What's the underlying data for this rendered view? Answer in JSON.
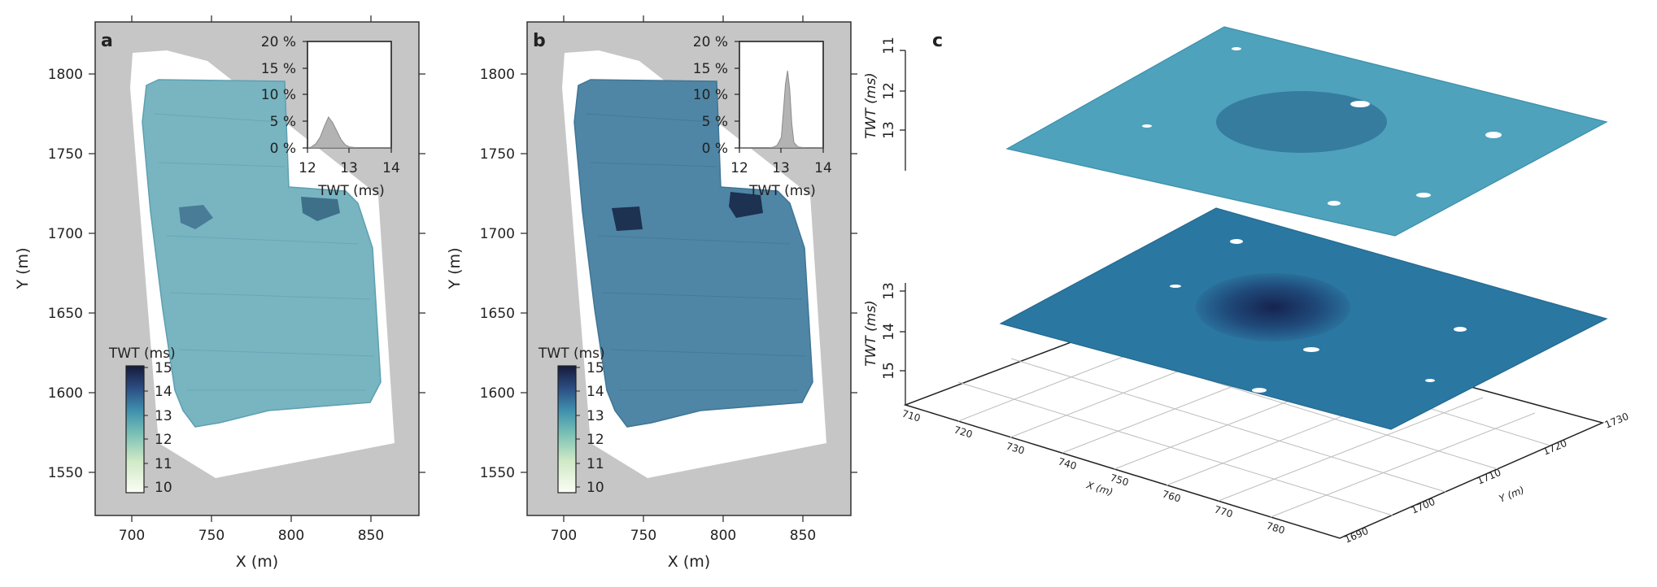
{
  "figure": {
    "panels": [
      {
        "id": "a",
        "label": "a",
        "xlabel": "X (m)",
        "ylabel": "Y (m)",
        "xticks": [
          "700",
          "750",
          "800",
          "850"
        ],
        "yticks": [
          "1550",
          "1600",
          "1650",
          "1700",
          "1750",
          "1800"
        ],
        "colorbar": {
          "title": "TWT (ms)",
          "ticks": [
            "10",
            "11",
            "12",
            "13",
            "14",
            "15"
          ]
        },
        "inset": {
          "xlabel": "TWT (ms)",
          "xticks": [
            "12",
            "13",
            "14"
          ],
          "yticks": [
            "0 %",
            "5 %",
            "10 %",
            "15 %",
            "20 %"
          ]
        }
      },
      {
        "id": "b",
        "label": "b",
        "xlabel": "X (m)",
        "ylabel": "Y (m)",
        "xticks": [
          "700",
          "750",
          "800",
          "850"
        ],
        "yticks": [
          "1550",
          "1600",
          "1650",
          "1700",
          "1750",
          "1800"
        ],
        "colorbar": {
          "title": "TWT (ms)",
          "ticks": [
            "10",
            "11",
            "12",
            "13",
            "14",
            "15"
          ]
        },
        "inset": {
          "xlabel": "TWT (ms)",
          "xticks": [
            "12",
            "13",
            "14"
          ],
          "yticks": [
            "0 %",
            "5 %",
            "10 %",
            "15 %",
            "20 %"
          ]
        }
      },
      {
        "id": "c",
        "label": "c",
        "upper_axis_label": "TWT (ms)",
        "upper_ticks": [
          "11",
          "12",
          "13"
        ],
        "lower_axis_label": "TWT (ms)",
        "lower_ticks": [
          "13",
          "14",
          "15"
        ],
        "x_axis_label": "X (m)",
        "x_ticks": [
          "710",
          "720",
          "730",
          "740",
          "750",
          "760",
          "770",
          "780"
        ],
        "y_axis_label": "Y (m)",
        "y_ticks": [
          "1690",
          "1700",
          "1710",
          "1720",
          "1730"
        ]
      }
    ]
  },
  "chart_data": [
    {
      "type": "area",
      "panel": "a-inset",
      "xlabel": "TWT (ms)",
      "xlim": [
        12,
        14
      ],
      "ylim": [
        0,
        20
      ],
      "x": [
        12.0,
        12.1,
        12.2,
        12.3,
        12.4,
        12.5,
        12.6,
        12.7,
        12.8,
        12.9,
        13.0,
        13.1,
        13.2,
        13.4,
        13.6,
        14.0
      ],
      "values": [
        0,
        0.2,
        0.8,
        2.0,
        4.0,
        5.8,
        4.8,
        3.2,
        1.6,
        0.6,
        0.2,
        0.1,
        0,
        0,
        0,
        0
      ]
    },
    {
      "type": "area",
      "panel": "b-inset",
      "xlabel": "TWT (ms)",
      "xlim": [
        12,
        14
      ],
      "ylim": [
        0,
        20
      ],
      "x": [
        12.0,
        12.6,
        12.8,
        12.9,
        13.0,
        13.05,
        13.1,
        13.15,
        13.2,
        13.25,
        13.3,
        13.4,
        13.6,
        14.0
      ],
      "values": [
        0,
        0,
        0.1,
        0.5,
        2.0,
        7.0,
        12.0,
        14.5,
        11.0,
        4.5,
        1.0,
        0.2,
        0,
        0
      ]
    }
  ]
}
